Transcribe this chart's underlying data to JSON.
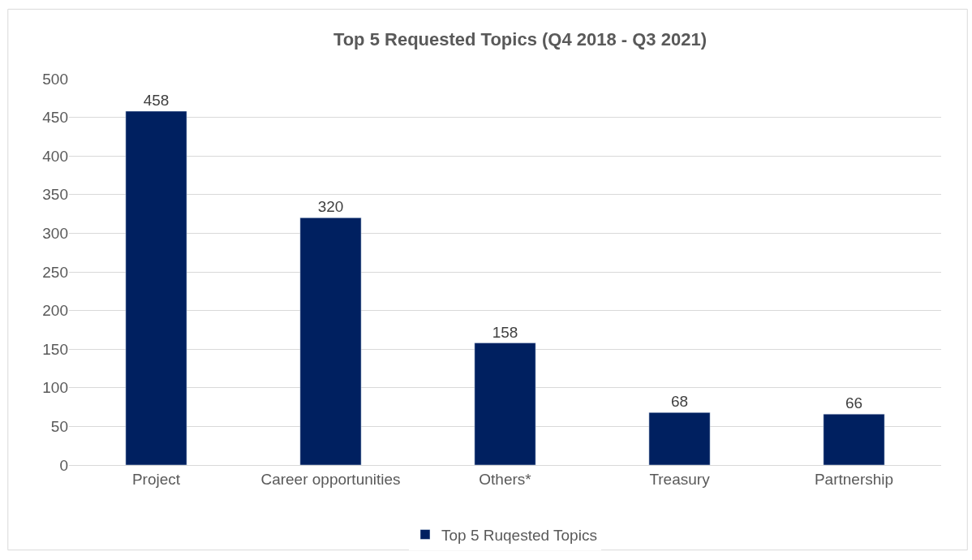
{
  "chart_data": {
    "type": "bar",
    "title": "Top 5 Requested Topics (Q4 2018 - Q3 2021)",
    "categories": [
      "Project",
      "Career opportunities",
      "Others*",
      "Treasury",
      "Partnership"
    ],
    "series": [
      {
        "name": "Top 5 Ruqested Topics",
        "color": "#002060",
        "values": [
          458,
          320,
          158,
          68,
          66
        ]
      }
    ],
    "ylim": [
      0,
      500
    ],
    "yticks": [
      0,
      50,
      100,
      150,
      200,
      250,
      300,
      350,
      400,
      450,
      500
    ],
    "grid": "y",
    "legend": "bottom",
    "data_labels": true
  }
}
